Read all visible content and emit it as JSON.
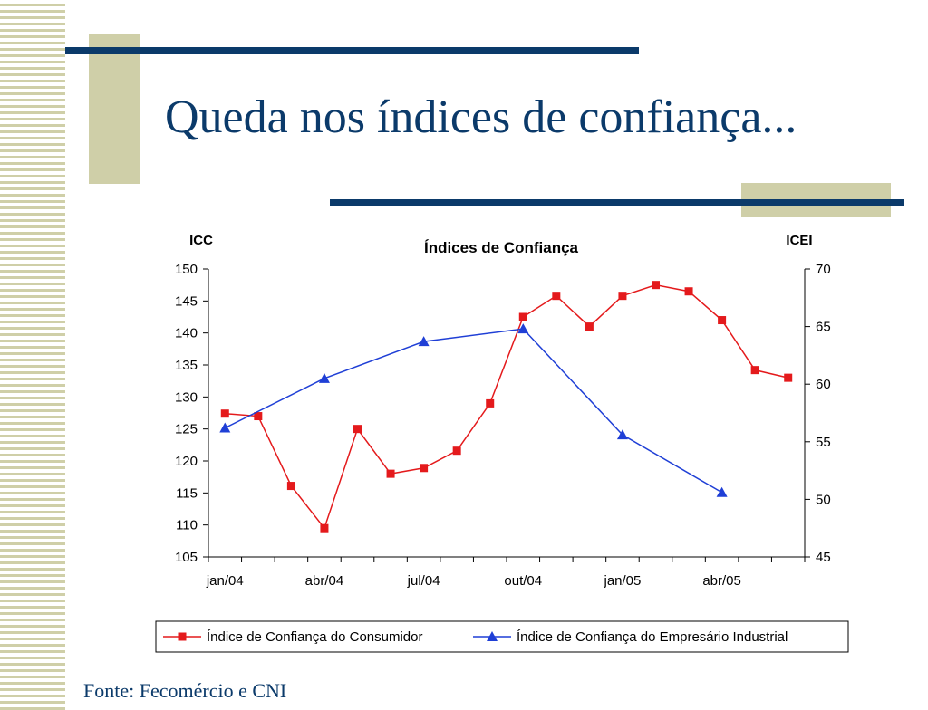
{
  "slide": {
    "title": "Queda nos índices de confiança...",
    "source": "Fonte: Fecomércio e CNI"
  },
  "colors": {
    "title_text": "#0b3a6a",
    "accent_olive": "#cfcfa8",
    "bar_navy": "#0b3a6a",
    "icc_series": "#e41a1c",
    "icei_series": "#1f3fd6"
  },
  "chart_data": {
    "type": "line",
    "title": "Índices de Confiança",
    "left_axis_label": "ICC",
    "right_axis_label": "ICEI",
    "x_tick_labels": [
      "jan/04",
      "abr/04",
      "jul/04",
      "out/04",
      "jan/05",
      "abr/05"
    ],
    "x_months": [
      "jan/04",
      "fev/04",
      "mar/04",
      "abr/04",
      "mai/04",
      "jun/04",
      "jul/04",
      "ago/04",
      "set/04",
      "out/04",
      "nov/04",
      "dez/04",
      "jan/05",
      "fev/05",
      "mar/05",
      "abr/05",
      "mai/05",
      "jun/05"
    ],
    "left_ylim": [
      105,
      150
    ],
    "left_yticks": [
      105,
      110,
      115,
      120,
      125,
      130,
      135,
      140,
      145,
      150
    ],
    "right_ylim": [
      45,
      70
    ],
    "right_yticks": [
      45,
      50,
      55,
      60,
      65,
      70
    ],
    "legend_position": "bottom",
    "grid": false,
    "series": [
      {
        "name": "Índice de Confiança do Consumidor",
        "axis": "left",
        "marker": "square",
        "color": "#e41a1c",
        "x": [
          "jan/04",
          "fev/04",
          "mar/04",
          "abr/04",
          "mai/04",
          "jun/04",
          "jul/04",
          "ago/04",
          "set/04",
          "out/04",
          "nov/04",
          "dez/04",
          "jan/05",
          "fev/05",
          "mar/05",
          "abr/05",
          "mai/05",
          "jun/05"
        ],
        "values": [
          127.4,
          127.0,
          116.1,
          109.5,
          125.0,
          118.0,
          118.9,
          121.6,
          129.0,
          142.5,
          145.8,
          141.0,
          145.8,
          147.5,
          146.5,
          142.0,
          134.2,
          133.0
        ]
      },
      {
        "name": "Índice de Confiança do Empresário Industrial",
        "axis": "right",
        "marker": "triangle",
        "color": "#1f3fd6",
        "x": [
          "jan/04",
          "abr/04",
          "jul/04",
          "out/04",
          "jan/05",
          "abr/05"
        ],
        "values": [
          56.2,
          60.5,
          63.7,
          64.8,
          55.6,
          50.6
        ]
      }
    ]
  }
}
